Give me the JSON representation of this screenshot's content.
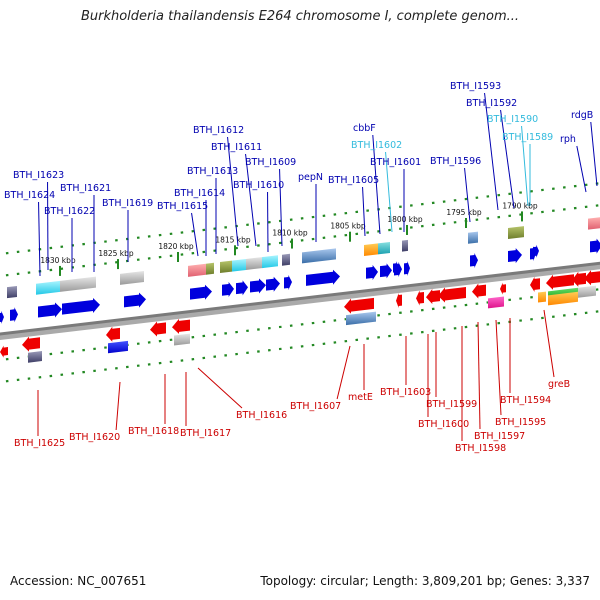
{
  "title": "Burkholderia thailandensis E264 chromosome I, complete genom...",
  "footer": {
    "accession_label": "Accession:",
    "accession": "NC_007651",
    "topology_label": "Topology:",
    "topology": "circular",
    "length_label": "Length:",
    "length": "3,809,201 bp",
    "genes_label": "Genes:",
    "genes": "3,337"
  },
  "colors": {
    "top_label": "#0000b0",
    "top_label_light": "#33bbdd",
    "bottom_label": "#cc0000",
    "forward_gene": "#0000dd",
    "reverse_gene": "#ee0000",
    "backbone": "#888888",
    "tick": "#228822"
  },
  "tick_labels": [
    "1830 kbp",
    "1825 kbp",
    "1820 kbp",
    "1815 kbp",
    "1810 kbp",
    "1805 kbp",
    "1800 kbp",
    "1795 kbp",
    "1790 kbp"
  ],
  "top_labels": [
    "BTH_I1623",
    "BTH_I1624",
    "BTH_I1621",
    "BTH_I1622",
    "BTH_I1619",
    "BTH_I1612",
    "BTH_I1611",
    "BTH_I1613",
    "BTH_I1614",
    "BTH_I1615",
    "BTH_I1609",
    "BTH_I1610",
    "pepN",
    "BTH_I1605",
    "cbbF",
    "BTH_I1602",
    "BTH_I1601",
    "BTH_I1596",
    "BTH_I1593",
    "BTH_I1592",
    "BTH_I1590",
    "BTH_I1589",
    "rph",
    "rdgB"
  ],
  "bottom_labels": [
    "BTH_I1625",
    "BTH_I1620",
    "BTH_I1618",
    "BTH_I1617",
    "BTH_I1616",
    "BTH_I1607",
    "metE",
    "BTH_I1603",
    "BTH_I1600",
    "BTH_I1599",
    "BTH_I1597",
    "BTH_I1598",
    "BTH_I1595",
    "BTH_I1594",
    "greB"
  ]
}
